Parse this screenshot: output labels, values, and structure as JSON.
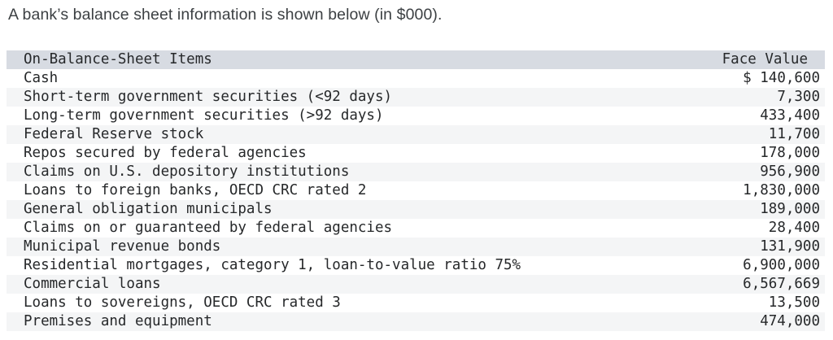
{
  "title": "A bank’s balance sheet information is shown below (in $000).",
  "table": {
    "header": {
      "item": "On-Balance-Sheet Items",
      "value": "Face Value"
    },
    "rows": [
      {
        "item": "Cash",
        "value": "$ 140,600"
      },
      {
        "item": "Short-term government securities (<92 days)",
        "value": "7,300"
      },
      {
        "item": "Long-term government securities (>92 days)",
        "value": "433,400"
      },
      {
        "item": "Federal Reserve stock",
        "value": "11,700"
      },
      {
        "item": "Repos secured by federal agencies",
        "value": "178,000"
      },
      {
        "item": "Claims on U.S. depository institutions",
        "value": "956,900"
      },
      {
        "item": "Loans to foreign banks, OECD CRC rated 2",
        "value": "1,830,000"
      },
      {
        "item": "General obligation municipals",
        "value": "189,000"
      },
      {
        "item": "Claims on or guaranteed by federal agencies",
        "value": "28,400"
      },
      {
        "item": "Municipal revenue bonds",
        "value": "131,900"
      },
      {
        "item": "Residential mortgages, category 1, loan-to-value ratio 75%",
        "value": "6,900,000"
      },
      {
        "item": "Commercial loans",
        "value": "6,567,669"
      },
      {
        "item": "Loans to sovereigns, OECD CRC rated 3",
        "value": "13,500"
      },
      {
        "item": "Premises and equipment",
        "value": "474,000"
      }
    ]
  },
  "colors": {
    "header_bg": "#d7dbe2",
    "stripe_bg": "#f4f5f6",
    "title_text": "#3c4043",
    "table_text": "#26282a"
  }
}
